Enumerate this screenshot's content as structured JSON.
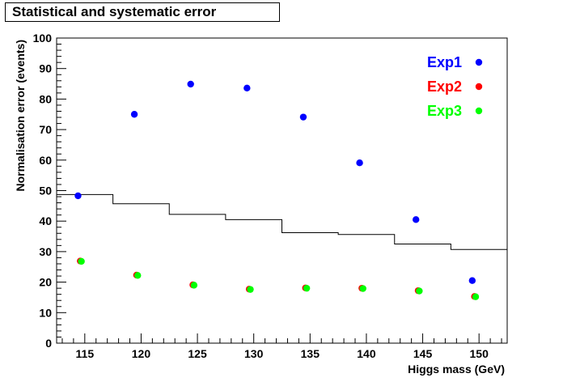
{
  "chart_data": {
    "type": "scatter",
    "title": "Statistical and systematic error",
    "xlabel": "Higgs mass (GeV)",
    "ylabel": "Normalisation error (events)",
    "xlim": [
      112.5,
      152.5
    ],
    "ylim": [
      0,
      100
    ],
    "x_ticks": [
      "115",
      "120",
      "125",
      "130",
      "135",
      "140",
      "145",
      "150"
    ],
    "y_ticks": [
      "0",
      "10",
      "20",
      "30",
      "40",
      "50",
      "60",
      "70",
      "80",
      "90",
      "100"
    ],
    "grid": false,
    "legend_position": "top-right",
    "series": [
      {
        "name": "Exp1",
        "color": "#0000ff",
        "x": [
          114.4,
          119.4,
          124.4,
          129.4,
          134.4,
          139.4,
          144.4,
          149.4
        ],
        "y": [
          48.3,
          75.0,
          84.9,
          83.6,
          74.1,
          59.1,
          40.5,
          20.5
        ]
      },
      {
        "name": "Exp2",
        "color": "#ff0000",
        "x": [
          114.6,
          119.6,
          124.6,
          129.6,
          134.6,
          139.6,
          144.6,
          149.6
        ],
        "y": [
          26.9,
          22.3,
          19.1,
          17.7,
          18.1,
          18.0,
          17.2,
          15.3
        ]
      },
      {
        "name": "Exp3",
        "color": "#00ff00",
        "x": [
          114.7,
          119.7,
          124.7,
          129.7,
          134.7,
          139.7,
          144.7,
          149.7
        ],
        "y": [
          26.8,
          22.2,
          19.0,
          17.6,
          18.0,
          17.9,
          17.1,
          15.2
        ]
      },
      {
        "type": "step",
        "color": "#000000",
        "bin_edges": [
          112.5,
          117.5,
          122.5,
          127.5,
          132.5,
          137.5,
          142.5,
          147.5,
          152.5
        ],
        "values": [
          48.7,
          45.7,
          42.2,
          40.5,
          36.2,
          35.6,
          32.5,
          30.7
        ]
      }
    ]
  }
}
